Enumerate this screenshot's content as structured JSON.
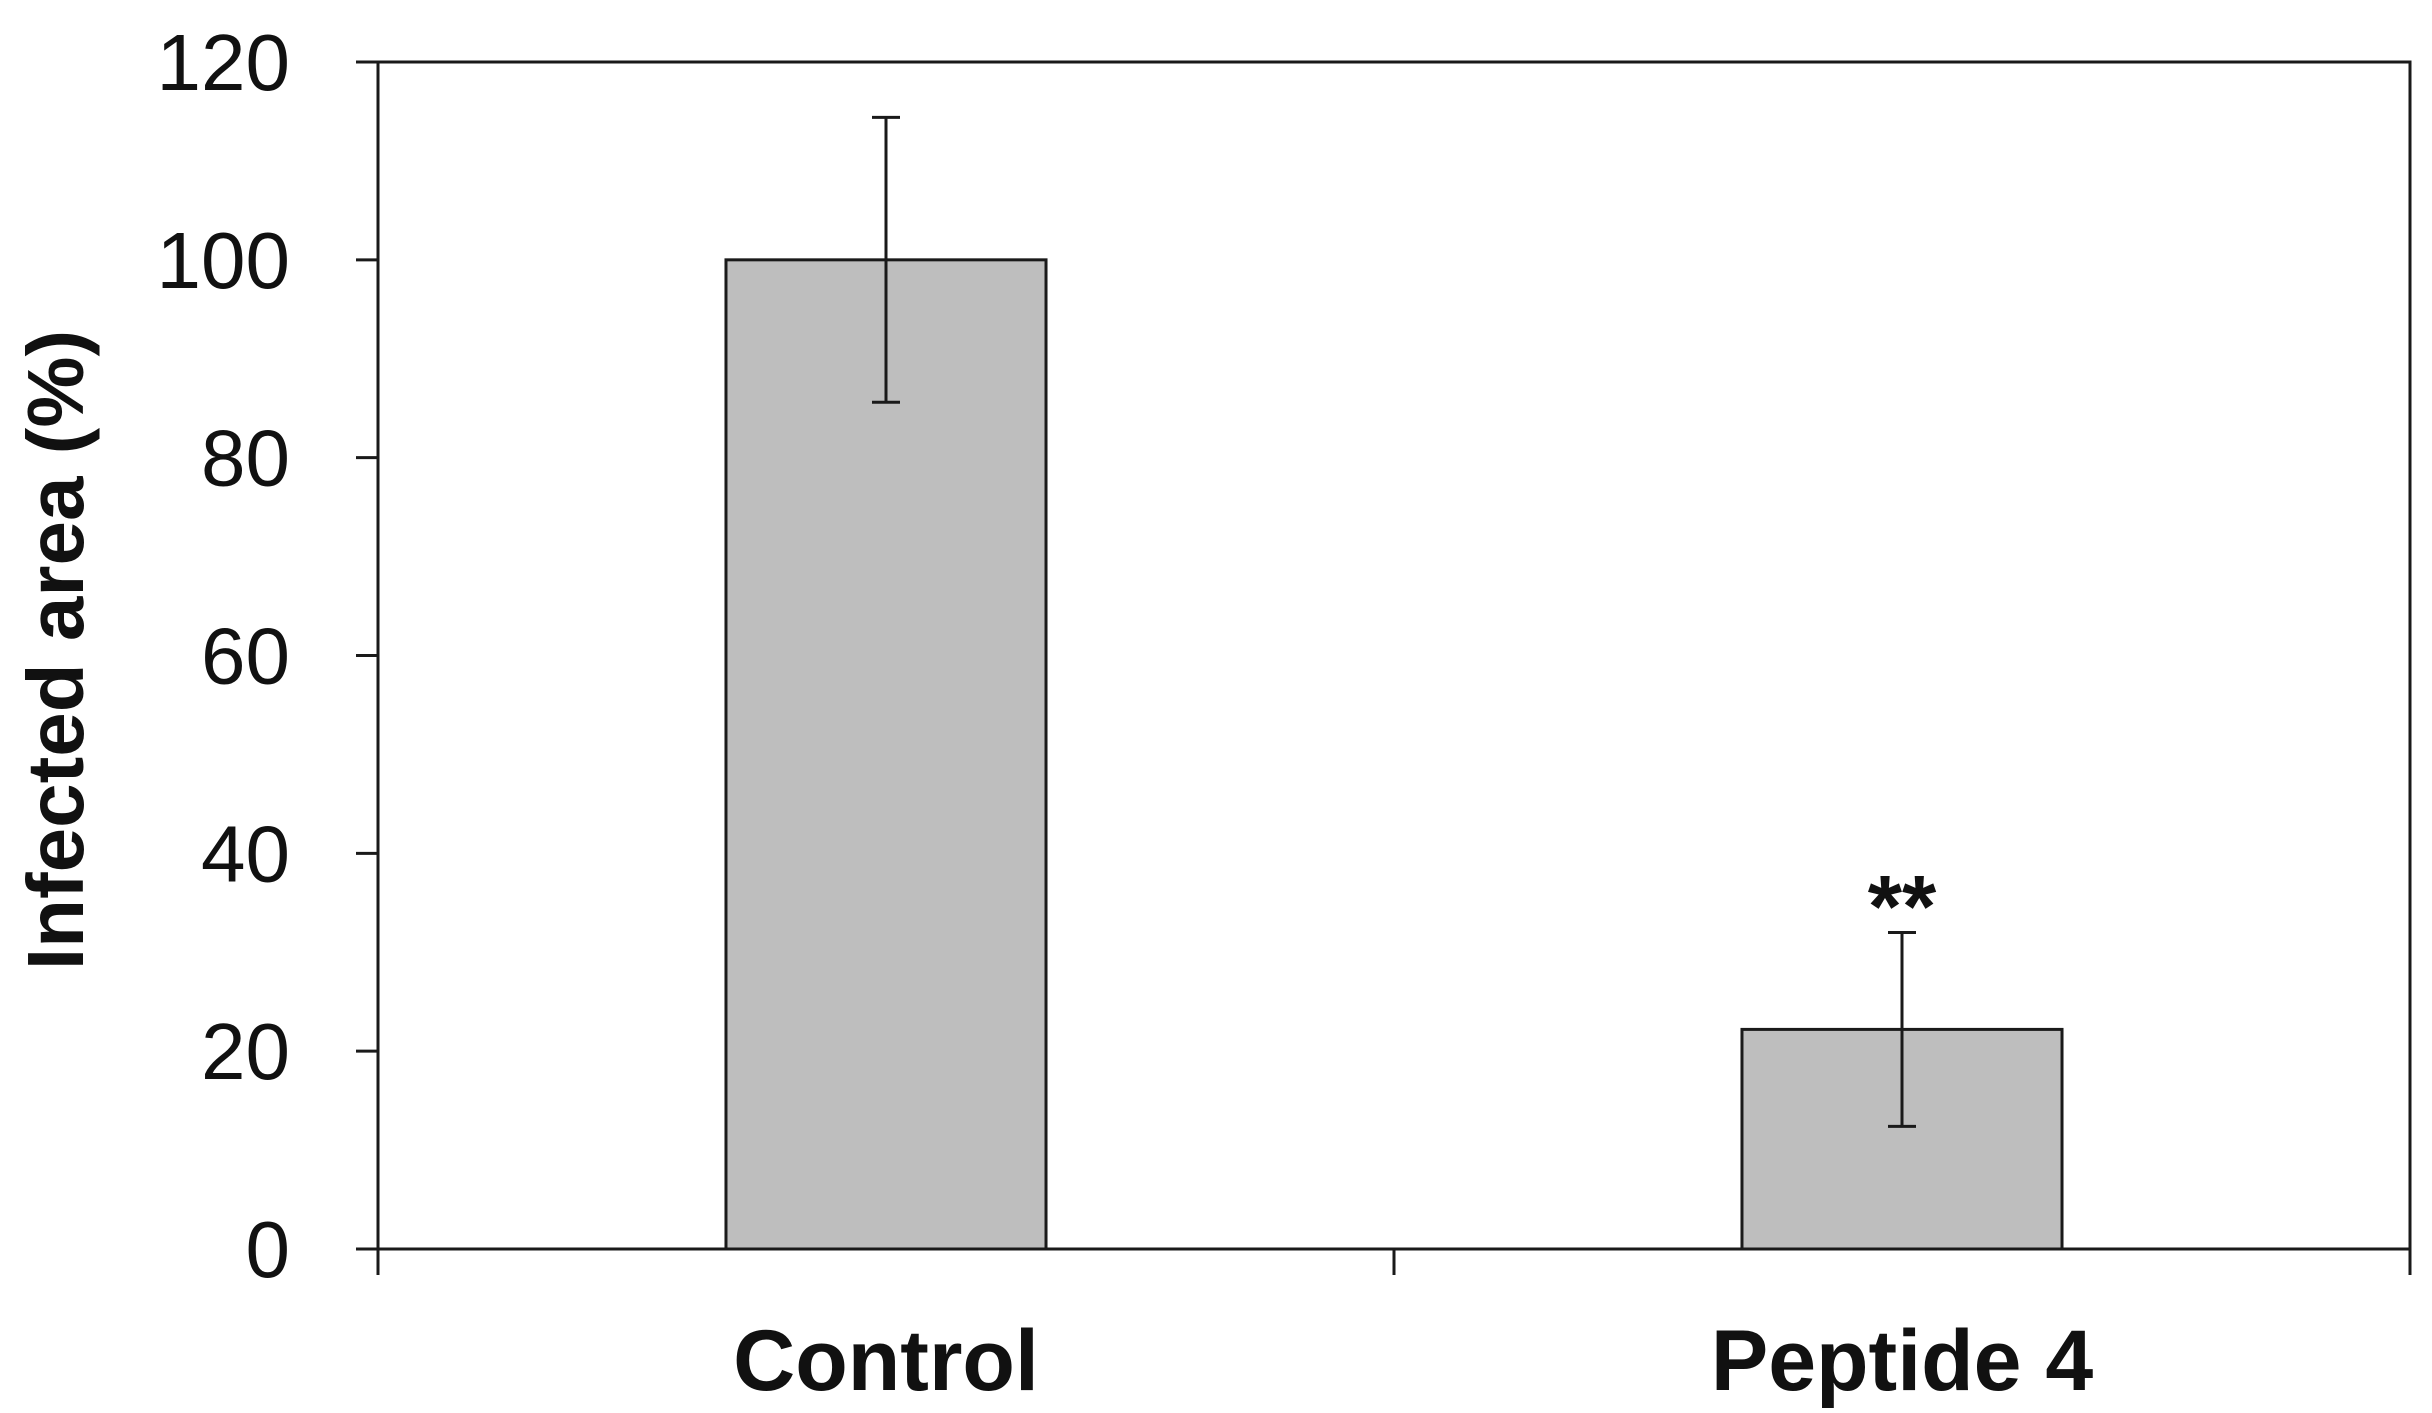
{
  "chart_data": {
    "type": "bar",
    "title": "",
    "xlabel": "",
    "ylabel": "Infected area (%)",
    "categories": [
      "Control",
      "Peptide 4"
    ],
    "values": [
      100,
      22.2
    ],
    "errors": [
      14.4,
      9.8
    ],
    "annotations": [
      "",
      "**"
    ],
    "ylim": [
      0,
      120
    ],
    "yticks": [
      0,
      20,
      40,
      60,
      80,
      100,
      120
    ],
    "grid": false,
    "colors": {
      "bar_fill": "#bebebe",
      "bar_stroke": "#1a1a1a",
      "axis": "#1a1a1a"
    }
  }
}
